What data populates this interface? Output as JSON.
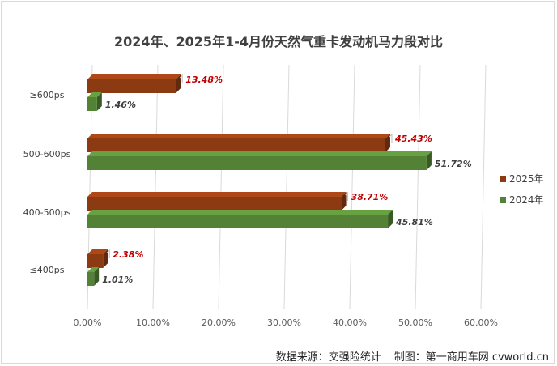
{
  "chart_data": {
    "type": "bar",
    "orientation": "horizontal",
    "title": "2024年、2025年1-4月份天然气重卡发动机马力段对比",
    "categories": [
      "≥600ps",
      "500-600ps",
      "400-500ps",
      "≤400ps"
    ],
    "series": [
      {
        "name": "2025年",
        "values": [
          13.48,
          45.43,
          38.71,
          2.38
        ],
        "labels": [
          "13.48%",
          "45.43%",
          "38.71%",
          "2.38%"
        ],
        "color": "#8b3a12",
        "label_color": "#c00000"
      },
      {
        "name": "2024年",
        "values": [
          1.46,
          51.72,
          45.81,
          1.01
        ],
        "labels": [
          "1.46%",
          "51.72%",
          "45.81%",
          "1.01%"
        ],
        "color": "#538135",
        "label_color": "#404040"
      }
    ],
    "xlim": [
      0,
      60
    ],
    "xticks": [
      "0.00%",
      "10.00%",
      "20.00%",
      "30.00%",
      "40.00%",
      "50.00%",
      "60.00%"
    ],
    "xtick_values": [
      0,
      10,
      20,
      30,
      40,
      50,
      60
    ],
    "grid": true,
    "legend_position": "right"
  },
  "footer": {
    "source": "数据来源：交强险统计",
    "maker": "制图：第一商用车网 cvworld.cn"
  }
}
